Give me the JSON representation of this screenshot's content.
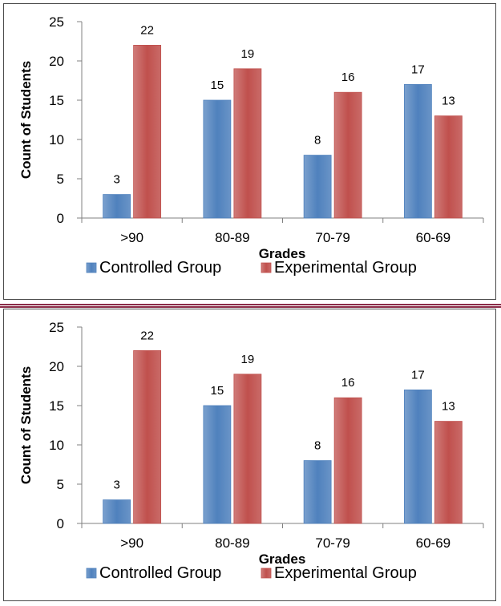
{
  "colors": {
    "controlled": "#4f81bd",
    "experimental": "#c0504d",
    "divider": "#8b2b47"
  },
  "chart_data": [
    {
      "type": "bar",
      "categories": [
        ">90",
        "80-89",
        "70-79",
        "60-69"
      ],
      "series": [
        {
          "name": "Controlled Group",
          "values": [
            3,
            15,
            8,
            17
          ]
        },
        {
          "name": "Experimental Group",
          "values": [
            22,
            19,
            16,
            13
          ]
        }
      ],
      "ylabel": "Count of Students",
      "xlabel": "Grades",
      "ylim": [
        0,
        25
      ],
      "yticks": [
        "0",
        "5",
        "10",
        "15",
        "20",
        "25"
      ],
      "grid": false,
      "legend": "bottom"
    },
    {
      "type": "bar",
      "categories": [
        ">90",
        "80-89",
        "70-79",
        "60-69"
      ],
      "series": [
        {
          "name": "Controlled Group",
          "values": [
            3,
            15,
            8,
            17
          ]
        },
        {
          "name": "Experimental Group",
          "values": [
            22,
            19,
            16,
            13
          ]
        }
      ],
      "ylabel": "Count of Students",
      "xlabel": "Grades",
      "ylim": [
        0,
        25
      ],
      "yticks": [
        "0",
        "5",
        "10",
        "15",
        "20",
        "25"
      ],
      "grid": false,
      "legend": "bottom"
    }
  ]
}
